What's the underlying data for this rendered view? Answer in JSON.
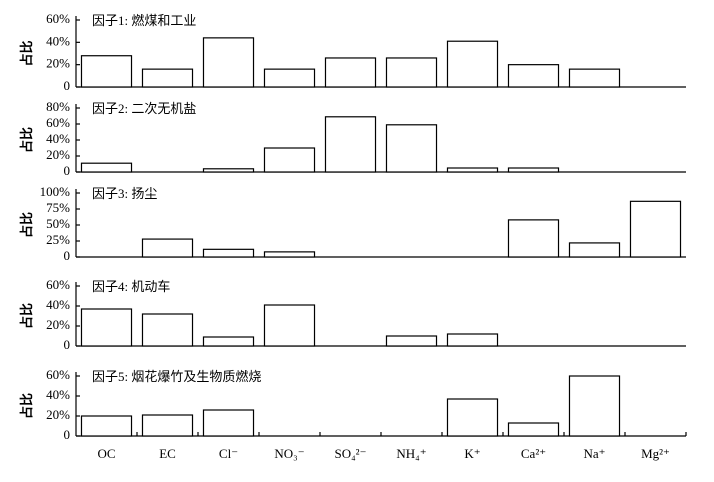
{
  "chart_data": [
    {
      "type": "bar",
      "title": "因子1: 燃煤和工业",
      "y_label": "占比",
      "values": [
        28,
        16,
        44,
        16,
        26,
        26,
        41,
        20,
        16,
        0
      ],
      "color": "#ffffff",
      "ylim": [
        0,
        60
      ],
      "yticks": [
        {
          "value": 0,
          "label": "0"
        },
        {
          "value": 20,
          "label": "20%"
        },
        {
          "value": 40,
          "label": "40%"
        },
        {
          "value": 60,
          "label": "60%"
        }
      ]
    },
    {
      "type": "bar",
      "title": "因子2: 二次无机盐",
      "y_label": "占比",
      "values": [
        11,
        0,
        4,
        30,
        69,
        59,
        5,
        5,
        0,
        0
      ],
      "color": "#ffffff",
      "ylim": [
        0,
        80
      ],
      "yticks": [
        {
          "value": 0,
          "label": "0"
        },
        {
          "value": 20,
          "label": "20%"
        },
        {
          "value": 40,
          "label": "40%"
        },
        {
          "value": 60,
          "label": "60%"
        },
        {
          "value": 80,
          "label": "80%"
        }
      ]
    },
    {
      "type": "bar",
      "title": "因子3: 扬尘",
      "y_label": "占比",
      "values": [
        0,
        28,
        12,
        8,
        0,
        0,
        0,
        58,
        22,
        87
      ],
      "color": "#ffffff",
      "ylim": [
        0,
        100
      ],
      "yticks": [
        {
          "value": 0,
          "label": "0"
        },
        {
          "value": 25,
          "label": "25%"
        },
        {
          "value": 50,
          "label": "50%"
        },
        {
          "value": 75,
          "label": "75%"
        },
        {
          "value": 100,
          "label": "100%"
        }
      ]
    },
    {
      "type": "bar",
      "title": "因子4: 机动车",
      "y_label": "占比",
      "values": [
        37,
        32,
        9,
        41,
        0,
        10,
        12,
        0,
        0,
        0
      ],
      "color": "#ffffff",
      "ylim": [
        0,
        60
      ],
      "yticks": [
        {
          "value": 0,
          "label": "0"
        },
        {
          "value": 20,
          "label": "20%"
        },
        {
          "value": 40,
          "label": "40%"
        },
        {
          "value": 60,
          "label": "60%"
        }
      ]
    },
    {
      "type": "bar",
      "title": "因子5: 烟花爆竹及生物质燃烧",
      "y_label": "占比",
      "categories": [
        "OC",
        "EC",
        "Cl⁻",
        "NO₃⁻",
        "SO₄²⁻",
        "NH₄⁺",
        "K⁺",
        "Ca²⁺",
        "Na⁺",
        "Mg²⁺"
      ],
      "values": [
        20,
        21,
        26,
        0,
        0,
        0,
        37,
        13,
        60,
        0
      ],
      "color": "#ffffff",
      "ylim": [
        0,
        60
      ],
      "yticks": [
        {
          "value": 0,
          "label": "0"
        },
        {
          "value": 20,
          "label": "20%"
        },
        {
          "value": 40,
          "label": "40%"
        },
        {
          "value": 60,
          "label": "60%"
        }
      ]
    }
  ]
}
